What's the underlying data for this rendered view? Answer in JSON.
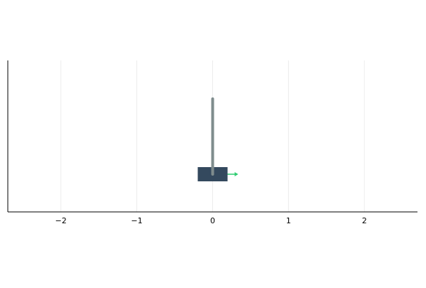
{
  "scene": {
    "type": "cart-pole",
    "x_axis": {
      "range": [
        -2.7,
        2.7
      ],
      "ticks": [
        -2,
        -1,
        0,
        1,
        2
      ],
      "tick_labels": [
        "−2",
        "−1",
        "0",
        "1",
        "2"
      ],
      "grid": true
    },
    "cart": {
      "position": 0.0,
      "color": "#34495e"
    },
    "pole": {
      "angle_deg": 0,
      "color": "#7f8c8d"
    },
    "force_arrow": {
      "direction": "right",
      "color": "#2ecc71"
    }
  }
}
